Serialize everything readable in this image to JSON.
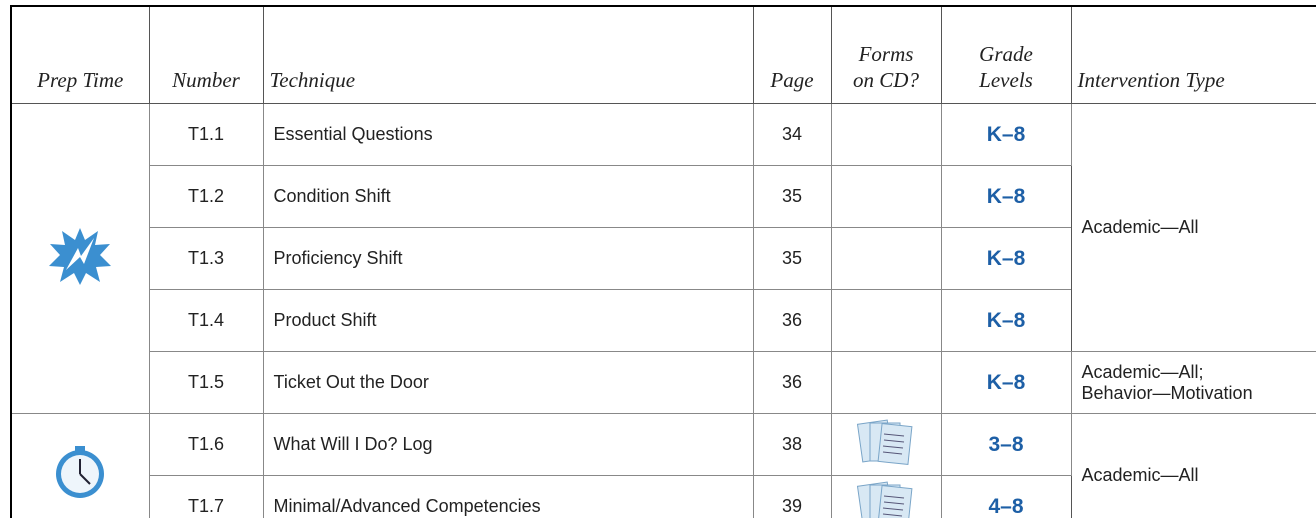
{
  "table": {
    "headers": [
      "Prep Time",
      "Number",
      "Technique",
      "Page",
      "Forms on CD?",
      "Grade Levels",
      "Intervention Type"
    ],
    "rows": [
      {
        "number": "T1.1",
        "technique": "Essential Questions",
        "page": 34,
        "grade": "K–8"
      },
      {
        "number": "T1.2",
        "technique": "Condition Shift",
        "page": 35,
        "grade": "K–8"
      },
      {
        "number": "T1.3",
        "technique": "Proficiency Shift",
        "page": 35,
        "grade": "K–8"
      },
      {
        "number": "T1.4",
        "technique": "Product Shift",
        "page": 36,
        "grade": "K–8"
      },
      {
        "number": "T1.5",
        "technique": "Ticket Out the Door",
        "page": 36,
        "grade": "K–8"
      },
      {
        "number": "T1.6",
        "technique": "What Will I Do? Log",
        "page": 38,
        "grade": "3–8"
      },
      {
        "number": "T1.7",
        "technique": "Minimal/Advanced Competencies",
        "page": 39,
        "grade": "4–8"
      }
    ],
    "intervention": [
      {
        "lines": [
          "Academic—All"
        ]
      },
      {
        "lines": [
          "Academic—All;",
          "Behavior—Motivation"
        ]
      },
      {
        "lines": [
          "Academic—All"
        ]
      }
    ]
  }
}
